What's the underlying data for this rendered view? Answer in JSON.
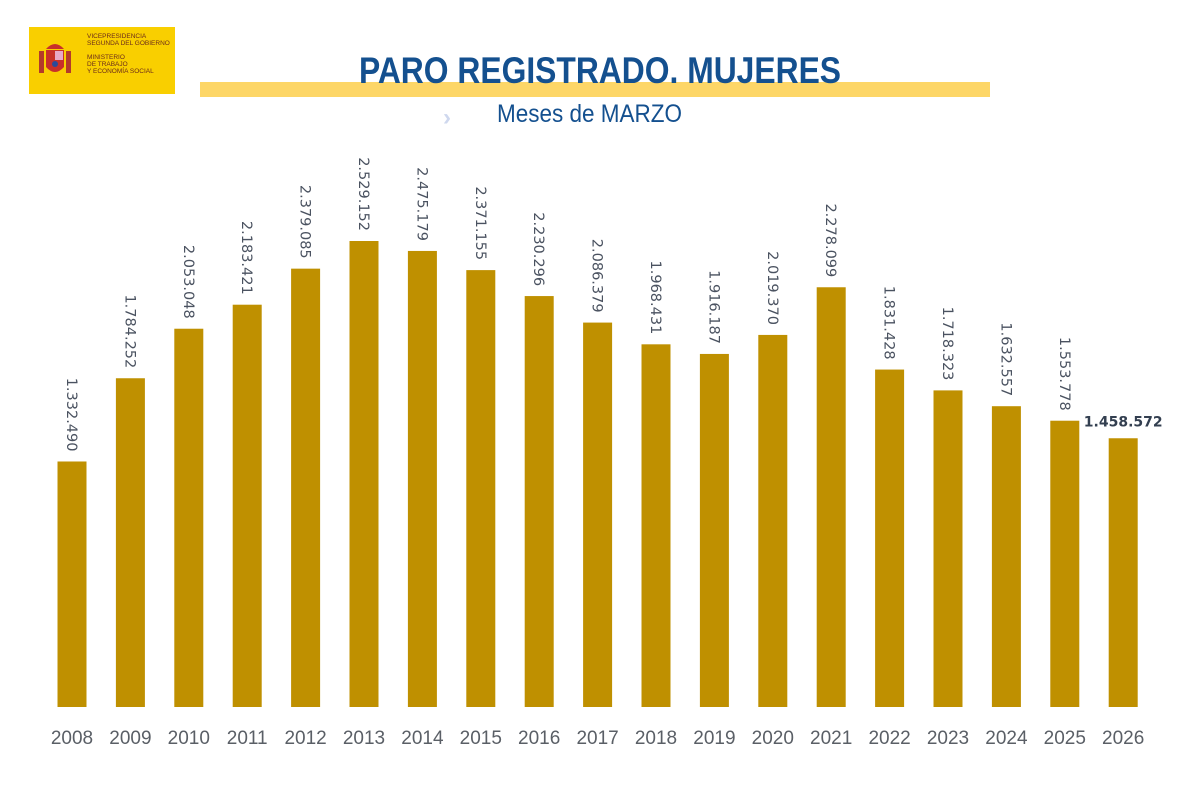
{
  "logo": {
    "line1": "VICEPRESIDENCIA",
    "line2": "SEGUNDA DEL GOBIERNO",
    "line3": "MINISTERIO",
    "line4": "DE TRABAJO",
    "line5": "Y ECONOMÍA SOCIAL"
  },
  "chart_data": {
    "type": "bar",
    "title": "PARO REGISTRADO. MUJERES",
    "subtitle": "Meses de MARZO",
    "xlabel": "",
    "ylabel": "",
    "ylim": [
      0,
      2529152
    ],
    "grid": false,
    "bar_color": "#bf9000",
    "highlight_label_color": "#333f50",
    "categories": [
      "2008",
      "2009",
      "2010",
      "2011",
      "2012",
      "2013",
      "2014",
      "2015",
      "2016",
      "2017",
      "2018",
      "2019",
      "2020",
      "2021",
      "2022",
      "2023",
      "2024",
      "2025",
      "2026"
    ],
    "values": [
      1332490,
      1784252,
      2053048,
      2183421,
      2379085,
      2529152,
      2475179,
      2371155,
      2230296,
      2086379,
      1968431,
      1916187,
      2019370,
      2278099,
      1831428,
      1718323,
      1632557,
      1553778,
      1458572
    ],
    "labels": [
      "1.332.490",
      "1.784.252",
      "2.053.048",
      "2.183.421",
      "2.379.085",
      "2.529.152",
      "2.475.179",
      "2.371.155",
      "2.230.296",
      "2.086.379",
      "1.968.431",
      "1.916.187",
      "2.019.370",
      "2.278.099",
      "1.831.428",
      "1.718.323",
      "1.632.557",
      "1.553.778",
      "1.458.572"
    ]
  }
}
